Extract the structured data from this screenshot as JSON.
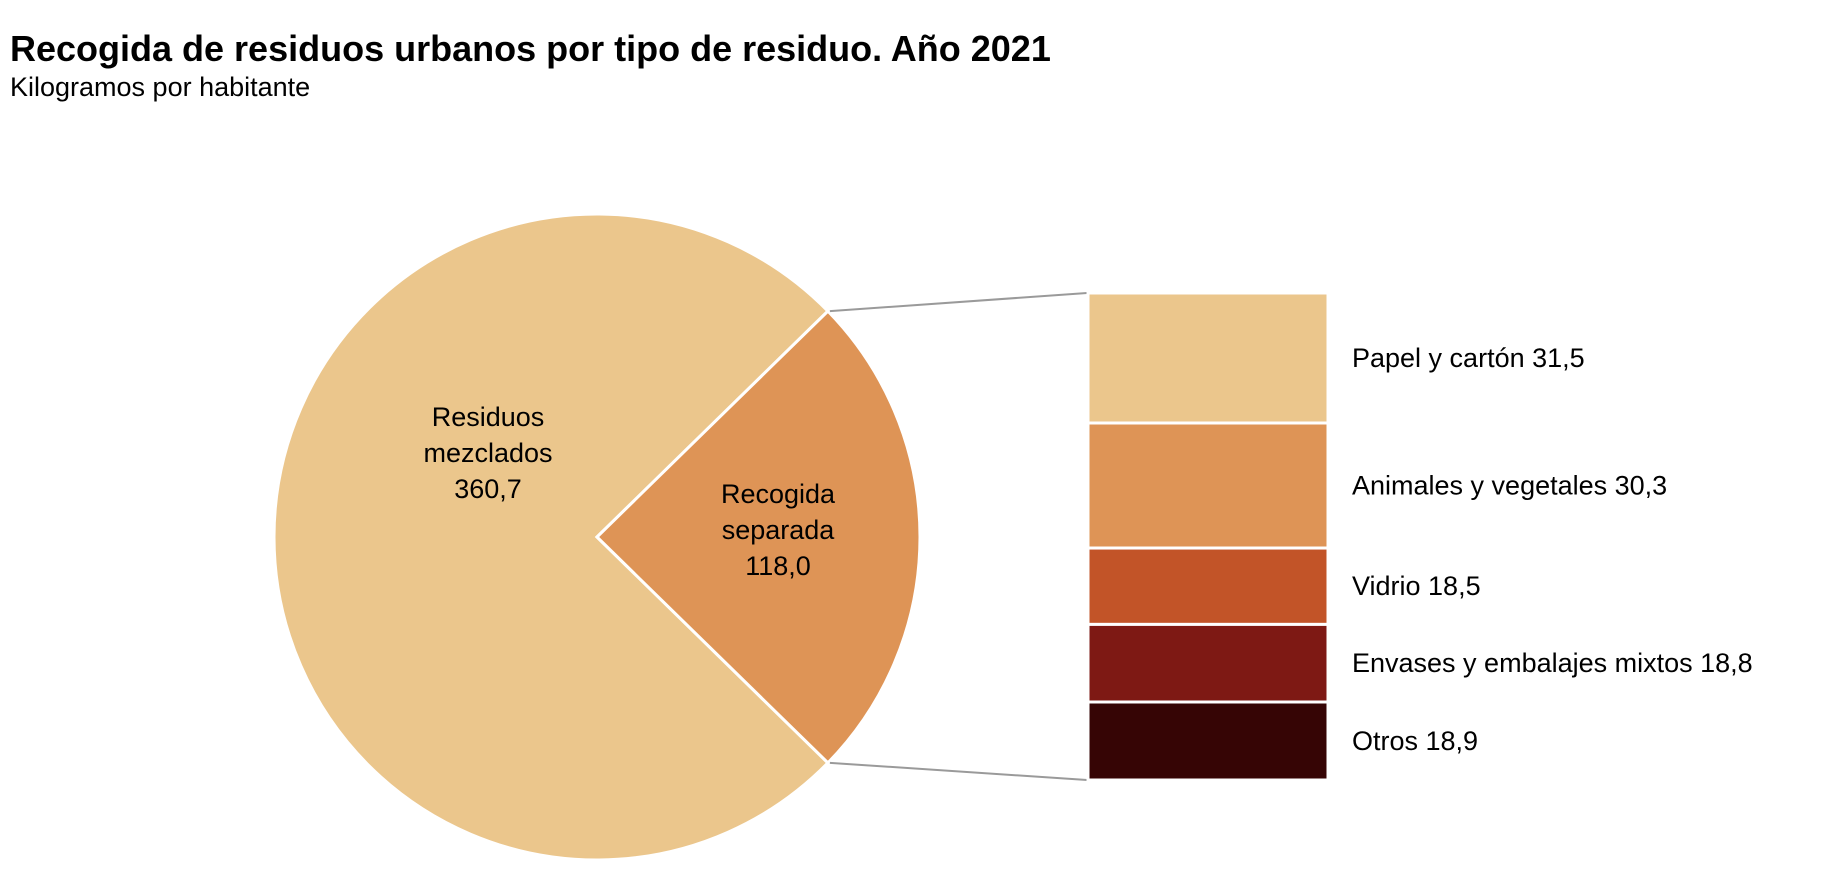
{
  "chart_data": {
    "type": "pie",
    "title": "Recogida de residuos urbanos por tipo de residuo. Año 2021",
    "subtitle": "Kilogramos por habitante",
    "slices": [
      {
        "label_lines": [
          "Residuos",
          "mezclados",
          "360,7"
        ],
        "value": 360.7,
        "color": "#EBC68C"
      },
      {
        "label_lines": [
          "Recogida",
          "separada",
          "118,0"
        ],
        "value": 118.0,
        "color": "#DE9456"
      }
    ],
    "breakdown_of": "Recogida separada",
    "breakdown": [
      {
        "label": "Papel y cartón 31,5",
        "value": 31.5,
        "color": "#EBC68C"
      },
      {
        "label": "Animales y vegetales 30,3",
        "value": 30.3,
        "color": "#DE9456"
      },
      {
        "label": "Vidrio 18,5",
        "value": 18.5,
        "color": "#C25428"
      },
      {
        "label": "Envases y embalajes mixtos 18,8",
        "value": 18.8,
        "color": "#7E1914"
      },
      {
        "label": "Otros 18,9",
        "value": 18.9,
        "color": "#360505"
      }
    ]
  }
}
